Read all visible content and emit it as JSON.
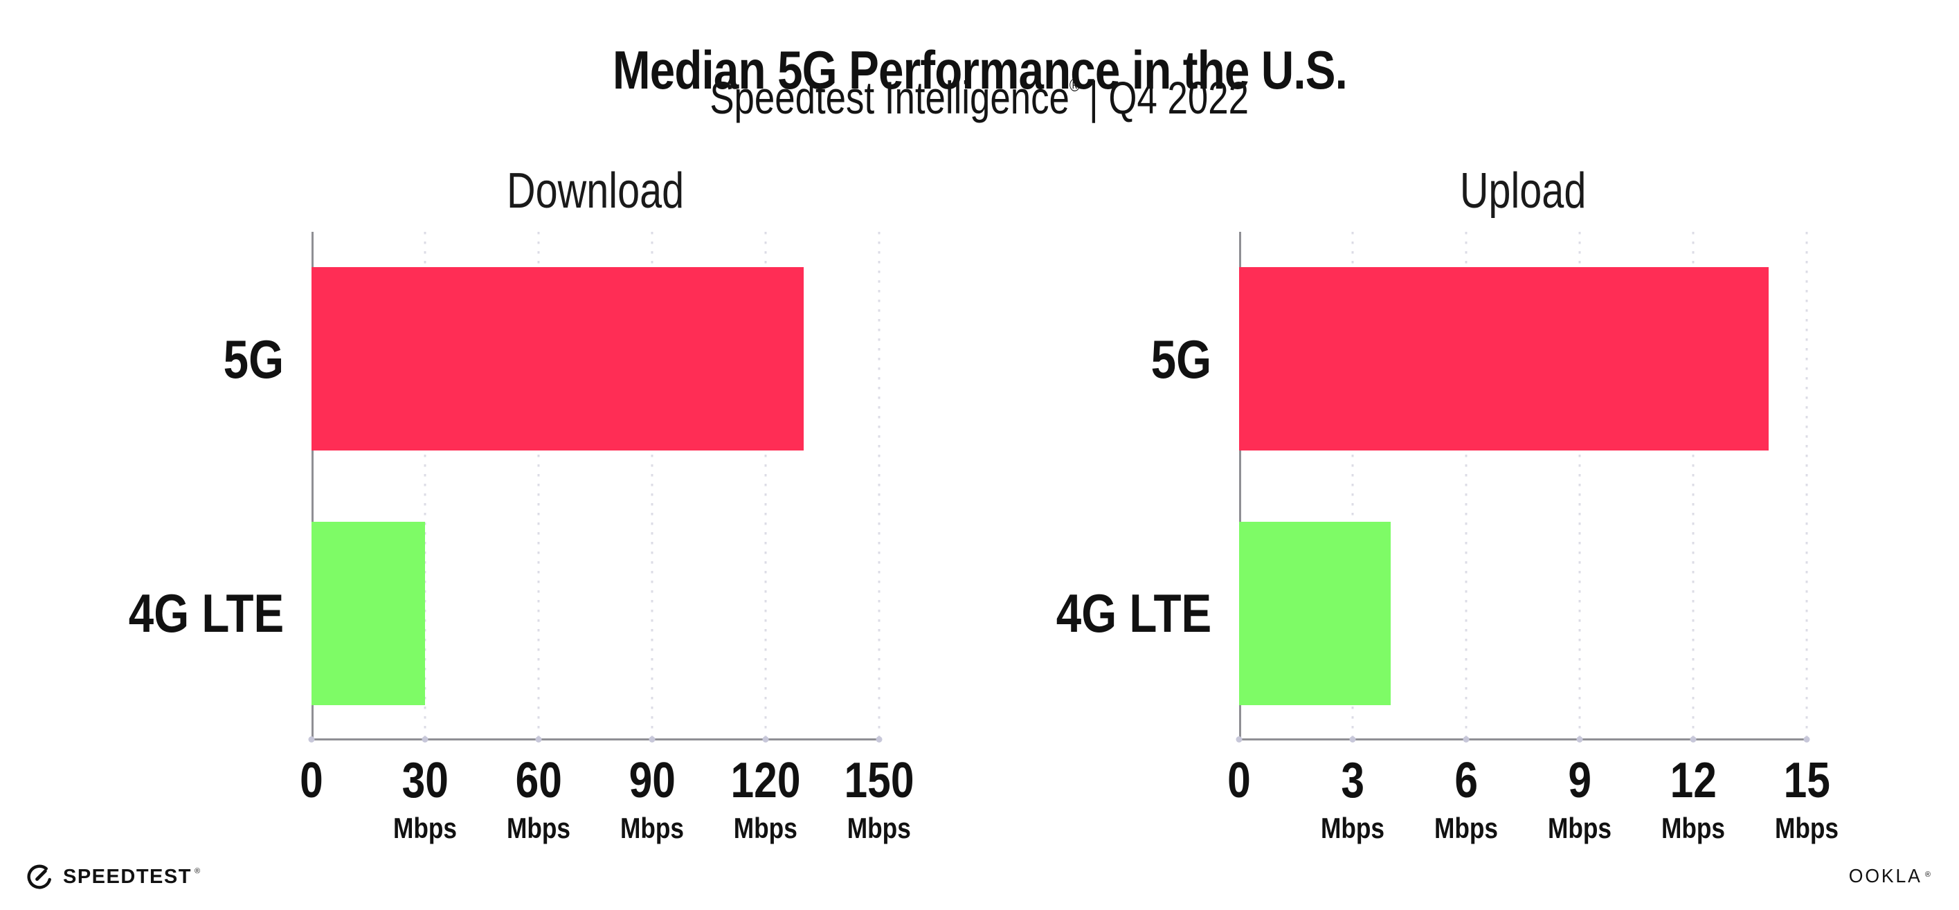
{
  "header": {
    "title": "Median 5G Performance in the U.S.",
    "subtitle_product": "Speedtest Intelligence",
    "subtitle_reg": "®",
    "subtitle_period": "| Q4 2022"
  },
  "chart_data": [
    {
      "type": "bar",
      "orientation": "horizontal",
      "title": "Download",
      "categories": [
        "5G",
        "4G LTE"
      ],
      "values": [
        130,
        30
      ],
      "unit": "Mbps",
      "xlim": [
        0,
        150
      ],
      "xticks": [
        0,
        30,
        60,
        90,
        120,
        150
      ],
      "bar_colors": [
        "#FF2D55",
        "#7EFB66"
      ],
      "grid": "vertical-dotted",
      "legend": "none"
    },
    {
      "type": "bar",
      "orientation": "horizontal",
      "title": "Upload",
      "categories": [
        "5G",
        "4G LTE"
      ],
      "values": [
        14,
        4
      ],
      "unit": "Mbps",
      "xlim": [
        0,
        15
      ],
      "xticks": [
        0,
        3,
        6,
        9,
        12,
        15
      ],
      "bar_colors": [
        "#FF2D55",
        "#7EFB66"
      ],
      "grid": "vertical-dotted",
      "legend": "none"
    }
  ],
  "footer": {
    "speedtest_label": "SPEEDTEST",
    "speedtest_reg": "®",
    "ookla_label": "OOKLA",
    "ookla_reg": "®"
  },
  "colors": {
    "bar_5g": "#FF2D55",
    "bar_4g_lte": "#7EFB66",
    "text": "#111111",
    "axis_line": "#8F8F94",
    "gridline": "#DCDCE6"
  }
}
